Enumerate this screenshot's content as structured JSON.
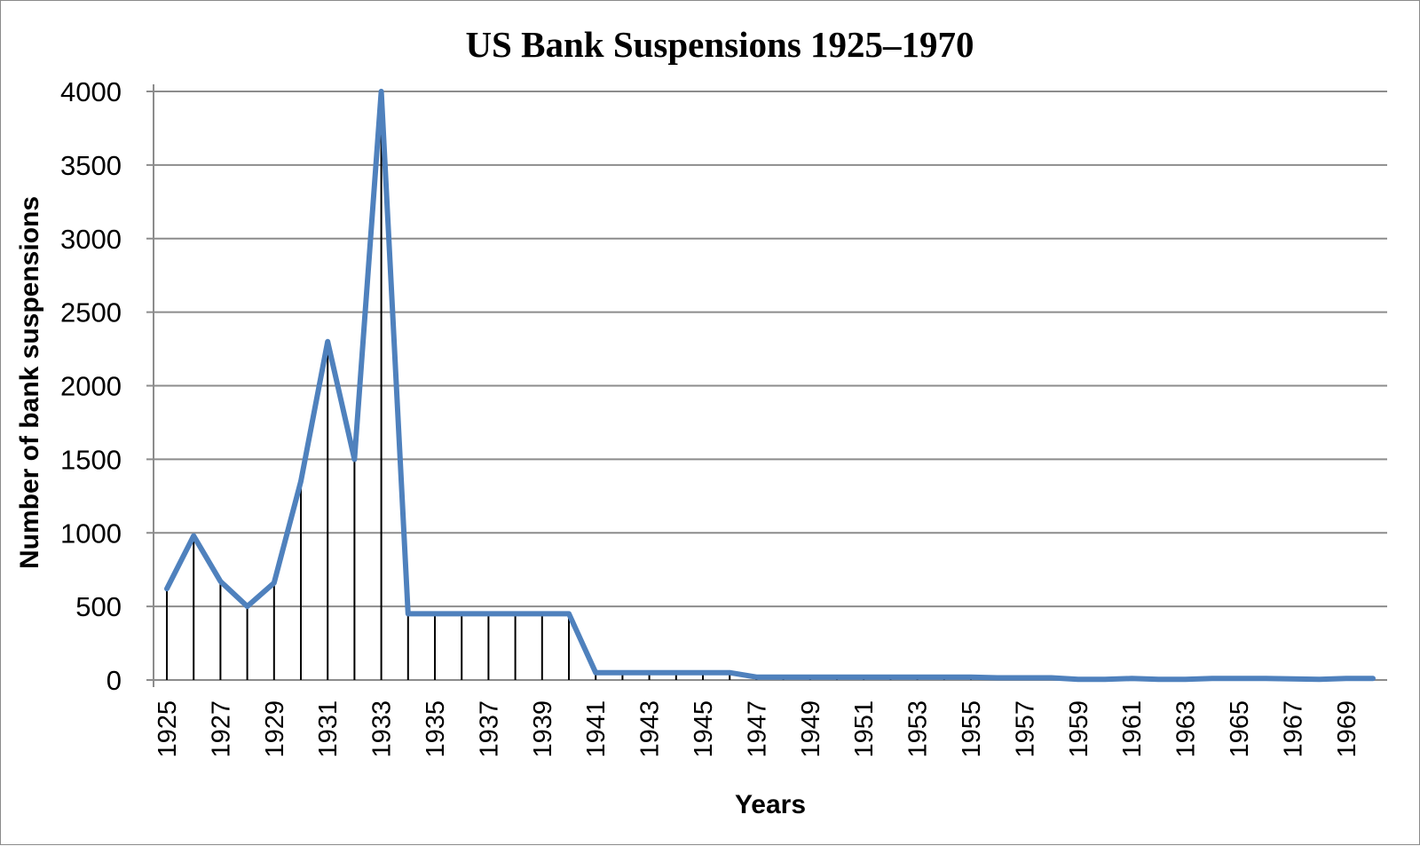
{
  "chart_data": {
    "type": "line",
    "title": "US Bank Suspensions 1925–1970",
    "xlabel": "Years",
    "ylabel": "Number of bank suspensions",
    "x": [
      1925,
      1926,
      1927,
      1928,
      1929,
      1930,
      1931,
      1932,
      1933,
      1934,
      1935,
      1936,
      1937,
      1938,
      1939,
      1940,
      1941,
      1942,
      1943,
      1944,
      1945,
      1946,
      1947,
      1948,
      1949,
      1950,
      1951,
      1952,
      1953,
      1954,
      1955,
      1956,
      1957,
      1958,
      1959,
      1960,
      1961,
      1962,
      1963,
      1964,
      1965,
      1966,
      1967,
      1968,
      1969,
      1970
    ],
    "xtick_labels": [
      "1925",
      "1927",
      "1929",
      "1931",
      "1933",
      "1935",
      "1937",
      "1939",
      "1941",
      "1943",
      "1945",
      "1947",
      "1949",
      "1951",
      "1953",
      "1955",
      "1957",
      "1959",
      "1961",
      "1963",
      "1965",
      "1967",
      "1969"
    ],
    "yticks": [
      0,
      500,
      1000,
      1500,
      2000,
      2500,
      3000,
      3500,
      4000
    ],
    "ylim": [
      0,
      4000
    ],
    "grid": true,
    "legend": "none",
    "series": [
      {
        "values": [
          620,
          980,
          670,
          500,
          660,
          1350,
          2300,
          1500,
          4000,
          450,
          450,
          450,
          450,
          450,
          450,
          450,
          50,
          50,
          50,
          50,
          50,
          50,
          20,
          20,
          20,
          20,
          20,
          20,
          20,
          20,
          20,
          15,
          15,
          15,
          5,
          5,
          10,
          5,
          5,
          10,
          10,
          10,
          8,
          5,
          10,
          10
        ],
        "color": "#4f81bd",
        "stems": true
      }
    ]
  }
}
